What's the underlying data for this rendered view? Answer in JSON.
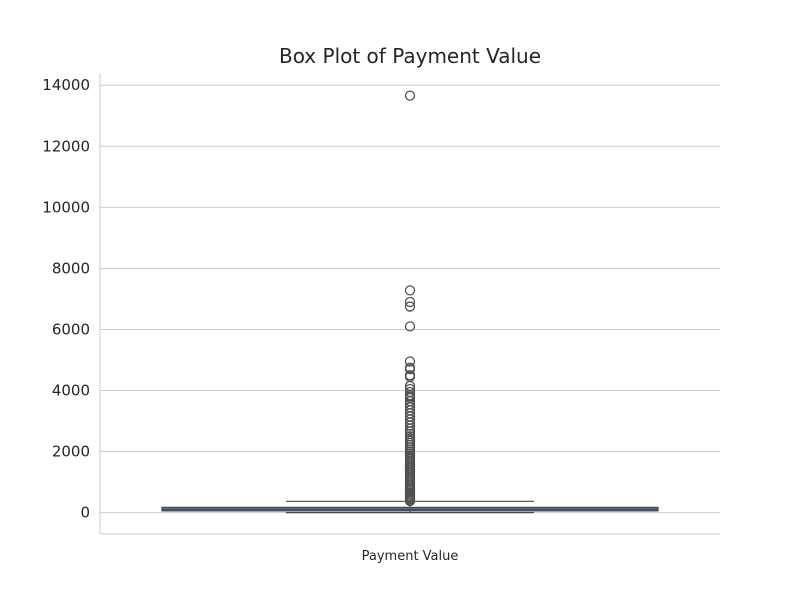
{
  "chart_data": {
    "type": "box",
    "title": "Box Plot of Payment Value",
    "xlabel": "",
    "ylabel": "",
    "categories": [
      "Payment Value"
    ],
    "ylim": [
      -700,
      14400
    ],
    "yticks": [
      0,
      2000,
      4000,
      6000,
      8000,
      10000,
      12000,
      14000
    ],
    "grid": "y",
    "box": {
      "whisker_low": 0,
      "q1": 57,
      "median": 100,
      "q3": 172,
      "whisker_high": 370
    },
    "outliers": [
      380,
      420,
      460,
      500,
      550,
      600,
      650,
      700,
      750,
      800,
      860,
      920,
      980,
      1040,
      1100,
      1160,
      1220,
      1280,
      1340,
      1400,
      1460,
      1520,
      1580,
      1640,
      1700,
      1760,
      1820,
      1880,
      1940,
      2000,
      2070,
      2140,
      2210,
      2280,
      2350,
      2420,
      2500,
      2580,
      2660,
      2750,
      2850,
      2950,
      3050,
      3150,
      3250,
      3350,
      3450,
      3550,
      3650,
      3750,
      3800,
      3850,
      3950,
      4050,
      4150,
      4450,
      4500,
      4700,
      4750,
      4950,
      6100,
      6750,
      6900,
      7280,
      13660
    ],
    "colors": {
      "box_fill": "#5a6f8f",
      "line": "#4a4a4a",
      "grid": "#cccccc",
      "outlier": "#505050"
    }
  }
}
